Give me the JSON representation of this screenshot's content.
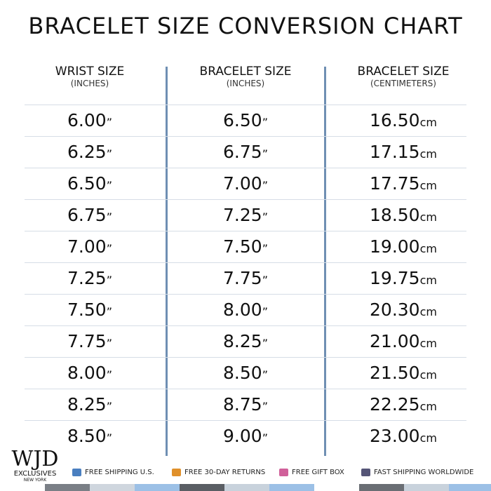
{
  "header": {
    "title": "BRACELET SIZE CONVERSION CHART"
  },
  "table": {
    "columns": [
      {
        "title": "WRIST SIZE",
        "subtitle": "(INCHES)"
      },
      {
        "title": "BRACELET SIZE",
        "subtitle": "(INCHES)"
      },
      {
        "title": "BRACELET SIZE",
        "subtitle": "(CENTIMETERS)"
      }
    ],
    "rows": [
      [
        {
          "num": "6.00",
          "unit": "”"
        },
        {
          "num": "6.50",
          "unit": "”"
        },
        {
          "num": "16.50",
          "unit": "cm"
        }
      ],
      [
        {
          "num": "6.25",
          "unit": "”"
        },
        {
          "num": "6.75",
          "unit": "”"
        },
        {
          "num": "17.15",
          "unit": "cm"
        }
      ],
      [
        {
          "num": "6.50",
          "unit": "”"
        },
        {
          "num": "7.00",
          "unit": "”"
        },
        {
          "num": "17.75",
          "unit": "cm"
        }
      ],
      [
        {
          "num": "6.75",
          "unit": "”"
        },
        {
          "num": "7.25",
          "unit": "”"
        },
        {
          "num": "18.50",
          "unit": "cm"
        }
      ],
      [
        {
          "num": "7.00",
          "unit": "”"
        },
        {
          "num": "7.50",
          "unit": "”"
        },
        {
          "num": "19.00",
          "unit": "cm"
        }
      ],
      [
        {
          "num": "7.25",
          "unit": "”"
        },
        {
          "num": "7.75",
          "unit": "”"
        },
        {
          "num": "19.75",
          "unit": "cm"
        }
      ],
      [
        {
          "num": "7.50",
          "unit": "”"
        },
        {
          "num": "8.00",
          "unit": "”"
        },
        {
          "num": "20.30",
          "unit": "cm"
        }
      ],
      [
        {
          "num": "7.75",
          "unit": "”"
        },
        {
          "num": "8.25",
          "unit": "”"
        },
        {
          "num": "21.00",
          "unit": "cm"
        }
      ],
      [
        {
          "num": "8.00",
          "unit": "”"
        },
        {
          "num": "8.50",
          "unit": "”"
        },
        {
          "num": "21.50",
          "unit": "cm"
        }
      ],
      [
        {
          "num": "8.25",
          "unit": "”"
        },
        {
          "num": "8.75",
          "unit": "”"
        },
        {
          "num": "22.25",
          "unit": "cm"
        }
      ],
      [
        {
          "num": "8.50",
          "unit": "”"
        },
        {
          "num": "9.00",
          "unit": "”"
        },
        {
          "num": "23.00",
          "unit": "cm"
        }
      ]
    ]
  },
  "footer": {
    "logo": {
      "name": "WJD",
      "line1": "EXCLUSIVES",
      "line2": "NEW YORK"
    },
    "features": [
      "FREE SHIPPING U.S.",
      "FREE 30-DAY RETURNS",
      "FREE GIFT BOX",
      "FAST SHIPPING WORLDWIDE"
    ]
  }
}
